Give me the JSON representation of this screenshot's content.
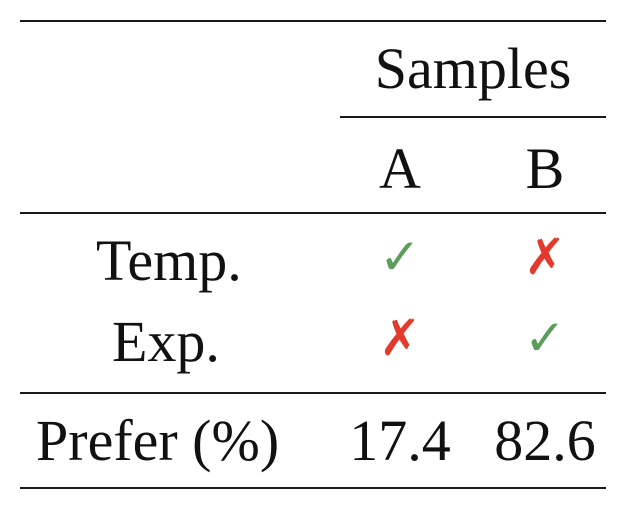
{
  "table": {
    "group_header": "Samples",
    "columns": [
      "A",
      "B"
    ],
    "rows": [
      {
        "label": "Temp.",
        "A": "✓",
        "B": "✗"
      },
      {
        "label": "Exp.",
        "A": "✗",
        "B": "✓"
      }
    ],
    "summary": {
      "label": "Prefer (%)",
      "A": "17.4",
      "B": "82.6"
    }
  },
  "colors": {
    "check": "#5a9e5a",
    "cross": "#e23b2e",
    "rule": "#1a1a1a"
  }
}
